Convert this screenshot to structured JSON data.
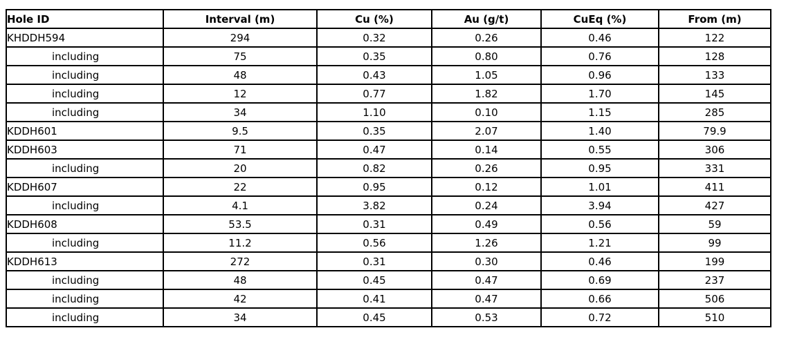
{
  "colors": {
    "background": "#ffffff",
    "border": "#000000",
    "text": "#000000"
  },
  "table": {
    "columns": [
      "Hole ID",
      "Interval (m)",
      "Cu (%)",
      "Au (g/t)",
      "CuEq (%)",
      "From (m)"
    ],
    "rows": [
      {
        "hole_id": "KHDDH594",
        "indent": false,
        "interval": "294",
        "cu": "0.32",
        "au": "0.26",
        "cueq": "0.46",
        "from": "122"
      },
      {
        "hole_id": "including",
        "indent": true,
        "interval": "75",
        "cu": "0.35",
        "au": "0.80",
        "cueq": "0.76",
        "from": "128"
      },
      {
        "hole_id": "including",
        "indent": true,
        "interval": "48",
        "cu": "0.43",
        "au": "1.05",
        "cueq": "0.96",
        "from": "133"
      },
      {
        "hole_id": "including",
        "indent": true,
        "interval": "12",
        "cu": "0.77",
        "au": "1.82",
        "cueq": "1.70",
        "from": "145"
      },
      {
        "hole_id": "including",
        "indent": true,
        "interval": "34",
        "cu": "1.10",
        "au": "0.10",
        "cueq": "1.15",
        "from": "285"
      },
      {
        "hole_id": "KDDH601",
        "indent": false,
        "interval": "9.5",
        "cu": "0.35",
        "au": "2.07",
        "cueq": "1.40",
        "from": "79.9"
      },
      {
        "hole_id": "KDDH603",
        "indent": false,
        "interval": "71",
        "cu": "0.47",
        "au": "0.14",
        "cueq": "0.55",
        "from": "306"
      },
      {
        "hole_id": "including",
        "indent": true,
        "interval": "20",
        "cu": "0.82",
        "au": "0.26",
        "cueq": "0.95",
        "from": "331"
      },
      {
        "hole_id": "KDDH607",
        "indent": false,
        "interval": "22",
        "cu": "0.95",
        "au": "0.12",
        "cueq": "1.01",
        "from": "411"
      },
      {
        "hole_id": "including",
        "indent": true,
        "interval": "4.1",
        "cu": "3.82",
        "au": "0.24",
        "cueq": "3.94",
        "from": "427"
      },
      {
        "hole_id": "KDDH608",
        "indent": false,
        "interval": "53.5",
        "cu": "0.31",
        "au": "0.49",
        "cueq": "0.56",
        "from": "59"
      },
      {
        "hole_id": "including",
        "indent": true,
        "interval": "11.2",
        "cu": "0.56",
        "au": "1.26",
        "cueq": "1.21",
        "from": "99"
      },
      {
        "hole_id": "KDDH613",
        "indent": false,
        "interval": "272",
        "cu": "0.31",
        "au": "0.30",
        "cueq": "0.46",
        "from": "199"
      },
      {
        "hole_id": "including",
        "indent": true,
        "interval": "48",
        "cu": "0.45",
        "au": "0.47",
        "cueq": "0.69",
        "from": "237"
      },
      {
        "hole_id": "including",
        "indent": true,
        "interval": "42",
        "cu": "0.41",
        "au": "0.47",
        "cueq": "0.66",
        "from": "506"
      },
      {
        "hole_id": "including",
        "indent": true,
        "interval": "34",
        "cu": "0.45",
        "au": "0.53",
        "cueq": "0.72",
        "from": "510"
      }
    ]
  }
}
